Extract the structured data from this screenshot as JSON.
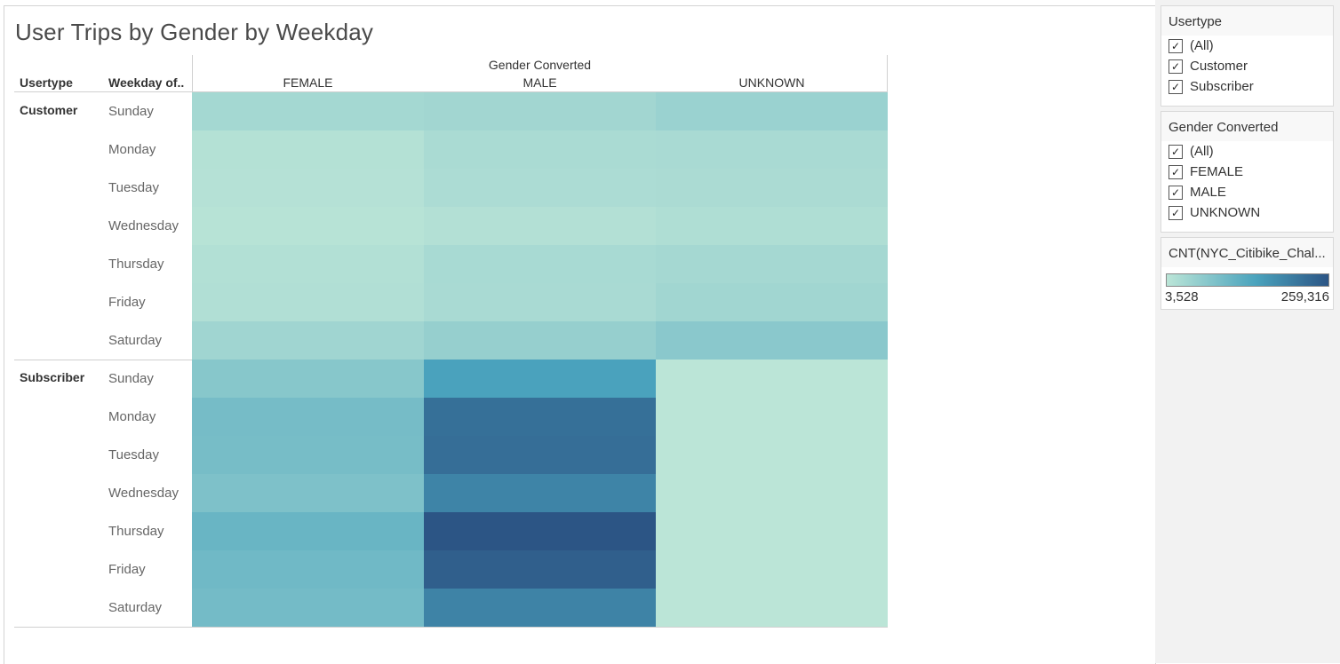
{
  "title": "User Trips by Gender by Weekday",
  "headers": {
    "usertype": "Usertype",
    "weekday": "Weekday of..",
    "gender": "Gender Converted"
  },
  "colors": {
    "low": "#bbe5d7",
    "mid": "#4aa3bd",
    "high": "#2c5585"
  },
  "filters": {
    "usertype": {
      "title": "Usertype",
      "options": [
        {
          "label": "(All)",
          "checked": true
        },
        {
          "label": "Customer",
          "checked": true
        },
        {
          "label": "Subscriber",
          "checked": true
        }
      ]
    },
    "gender": {
      "title": "Gender Converted",
      "options": [
        {
          "label": "(All)",
          "checked": true
        },
        {
          "label": "FEMALE",
          "checked": true
        },
        {
          "label": "MALE",
          "checked": true
        },
        {
          "label": "UNKNOWN",
          "checked": true
        }
      ]
    }
  },
  "legend": {
    "title": "CNT(NYC_Citibike_Chal...",
    "min_label": "3,528",
    "max_label": "259,316"
  },
  "chart_data": {
    "type": "heatmap",
    "title": "User Trips by Gender by Weekday",
    "columns": [
      "FEMALE",
      "MALE",
      "UNKNOWN"
    ],
    "column_header": "Gender Converted",
    "row_groups": [
      {
        "name": "Customer",
        "rows": [
          "Sunday",
          "Monday",
          "Tuesday",
          "Wednesday",
          "Thursday",
          "Friday",
          "Saturday"
        ],
        "values": [
          [
            32000,
            35000,
            44000
          ],
          [
            12000,
            25000,
            26000
          ],
          [
            11000,
            22000,
            24000
          ],
          [
            8000,
            14000,
            18000
          ],
          [
            15000,
            27000,
            31000
          ],
          [
            16000,
            26000,
            36000
          ],
          [
            37000,
            50000,
            65000
          ]
        ]
      },
      {
        "name": "Subscriber",
        "rows": [
          "Sunday",
          "Monday",
          "Tuesday",
          "Wednesday",
          "Thursday",
          "Friday",
          "Saturday"
        ],
        "values": [
          [
            68000,
            145000,
            3528
          ],
          [
            90000,
            220000,
            3528
          ],
          [
            88000,
            222000,
            3528
          ],
          [
            80000,
            190000,
            3528
          ],
          [
            105000,
            259316,
            3528
          ],
          [
            97000,
            245000,
            3528
          ],
          [
            92000,
            192000,
            3528
          ]
        ]
      }
    ],
    "color_min": 3528,
    "color_max": 259316
  }
}
